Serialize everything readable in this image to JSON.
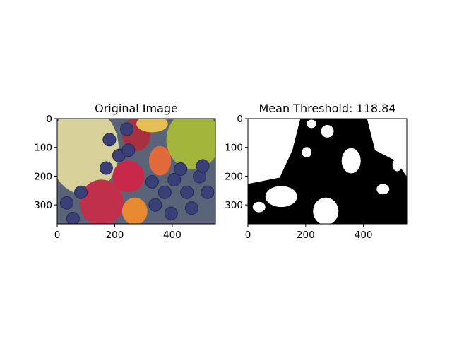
{
  "chart_data": [
    {
      "type": "image",
      "title": "Original Image",
      "xlim": [
        0,
        550
      ],
      "ylim": [
        366,
        0
      ],
      "xticks": [
        0,
        200,
        400
      ],
      "yticks": [
        0,
        100,
        200,
        300
      ]
    },
    {
      "type": "image",
      "title": "Mean Threshold: 118.84",
      "xlim": [
        0,
        550
      ],
      "ylim": [
        366,
        0
      ],
      "xticks": [
        0,
        200,
        400
      ],
      "yticks": [
        0,
        100,
        200,
        300
      ]
    }
  ]
}
